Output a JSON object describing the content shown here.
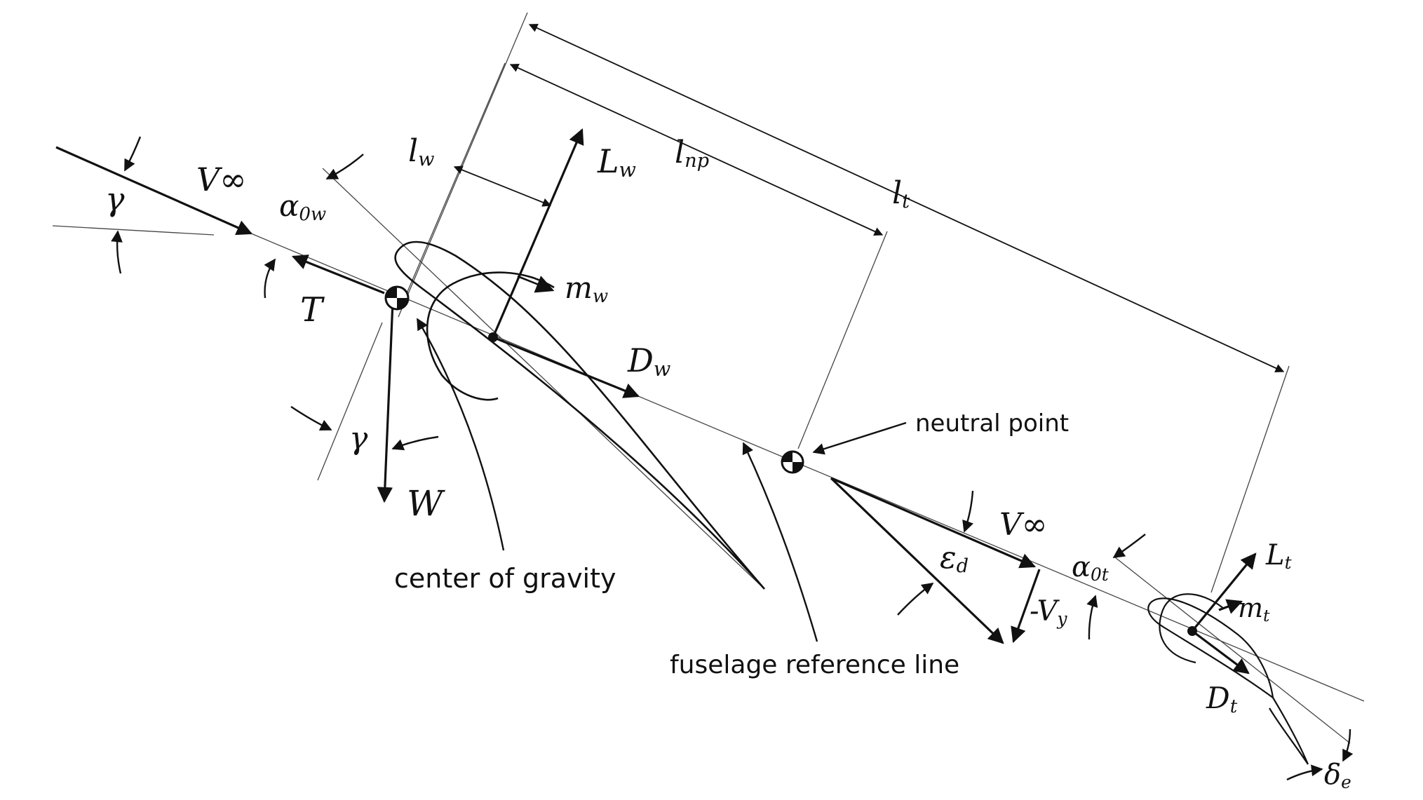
{
  "diagram": {
    "labels": {
      "gamma_top": "γ",
      "v_inf_front": "V∞",
      "alpha_0w_main": "α",
      "alpha_0w_sub": "0w",
      "thrust": "T",
      "gamma_bottom": "γ",
      "weight": "W",
      "l_w_main": "l",
      "l_w_sub": "w",
      "lift_w_main": "L",
      "lift_w_sub": "w",
      "l_np_main": "l",
      "l_np_sub": "np",
      "l_t_main": "l",
      "l_t_sub": "t",
      "m_w_main": "m",
      "m_w_sub": "w",
      "drag_w_main": "D",
      "drag_w_sub": "w",
      "v_inf_rear": "V∞",
      "eps_main": "ε",
      "eps_sub": "d",
      "neg_vy_main": "-V",
      "neg_vy_sub": "y",
      "alpha_0t_main": "α",
      "alpha_0t_sub": "0t",
      "lift_t_main": "L",
      "lift_t_sub": "t",
      "m_t_main": "m",
      "m_t_sub": "t",
      "drag_t_main": "D",
      "drag_t_sub": "t",
      "delta_e_main": "δ",
      "delta_e_sub": "e"
    },
    "annotations": {
      "neutral_point": "neutral point",
      "center_of_gravity": "center of gravity",
      "fuselage_reference_line": "fuselage reference line"
    },
    "colors": {
      "ink": "#111111",
      "thin": "#444444"
    }
  }
}
